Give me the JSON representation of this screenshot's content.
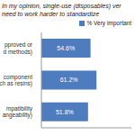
{
  "chart_data": {
    "type": "bar",
    "title": [
      "In my opinion, single-use (disposables) ver",
      "need to work harder to standardize"
    ],
    "orientation": "horizontal",
    "categories": [
      "pproved or\nd methods)",
      "component\nch as resins)",
      "mpatibility\nangeability)"
    ],
    "series": [
      {
        "name": "% Very important",
        "color": "#4f7bbf",
        "values": [
          54.6,
          61.2,
          51.8
        ],
        "value_labels": [
          "54.6%",
          "61.2%",
          "51.8%"
        ]
      }
    ],
    "xlim": [
      0,
      100
    ],
    "xticks": [],
    "data_labels": true,
    "tick_labels": "y"
  }
}
